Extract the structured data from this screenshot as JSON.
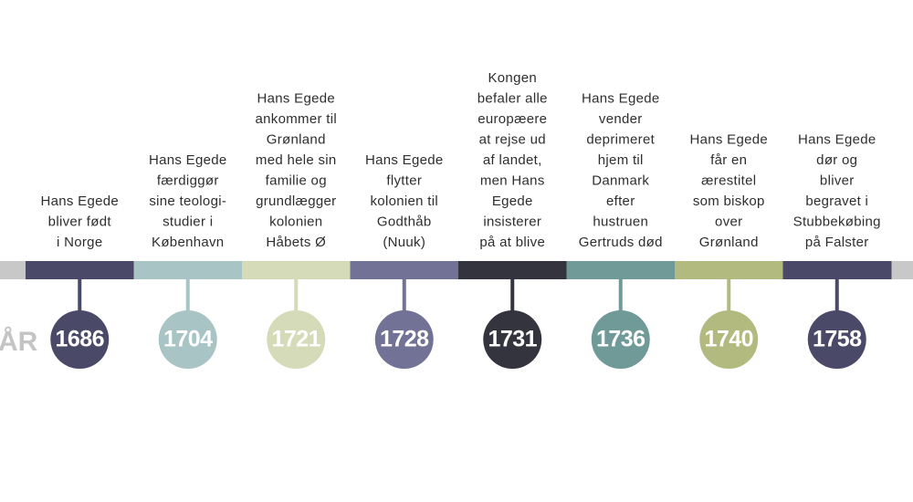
{
  "years_label": "ÅR",
  "events": [
    {
      "year": "1686",
      "lines": [
        "Hans Egede",
        "bliver født",
        "i Norge"
      ]
    },
    {
      "year": "1704",
      "lines": [
        "Hans Egede",
        "færdiggør",
        "sine teologi-",
        "studier i",
        "København"
      ]
    },
    {
      "year": "1721",
      "lines": [
        "Hans Egede",
        "ankommer til",
        "Grønland",
        "med hele sin",
        "familie og",
        "grundlægger",
        "kolonien",
        "Håbets Ø"
      ]
    },
    {
      "year": "1728",
      "lines": [
        "Hans Egede",
        "flytter",
        "kolonien til",
        "Godthåb",
        "(Nuuk)"
      ]
    },
    {
      "year": "1731",
      "lines": [
        "Kongen",
        "befaler alle",
        "europæere",
        "at rejse ud",
        "af landet,",
        "men Hans",
        "Egede",
        "insisterer",
        "på at blive"
      ]
    },
    {
      "year": "1736",
      "lines": [
        "Hans Egede",
        "vender",
        "deprimeret",
        "hjem til",
        "Danmark",
        "efter",
        "hustruen",
        "Gertruds død"
      ]
    },
    {
      "year": "1740",
      "lines": [
        "Hans Egede",
        "får en",
        "ærestitel",
        "som biskop",
        "over",
        "Grønland"
      ]
    },
    {
      "year": "1758",
      "lines": [
        "Hans Egede",
        "dør og",
        "bliver",
        "begravet i",
        "Stubbekøbing",
        "på Falster"
      ]
    }
  ]
}
